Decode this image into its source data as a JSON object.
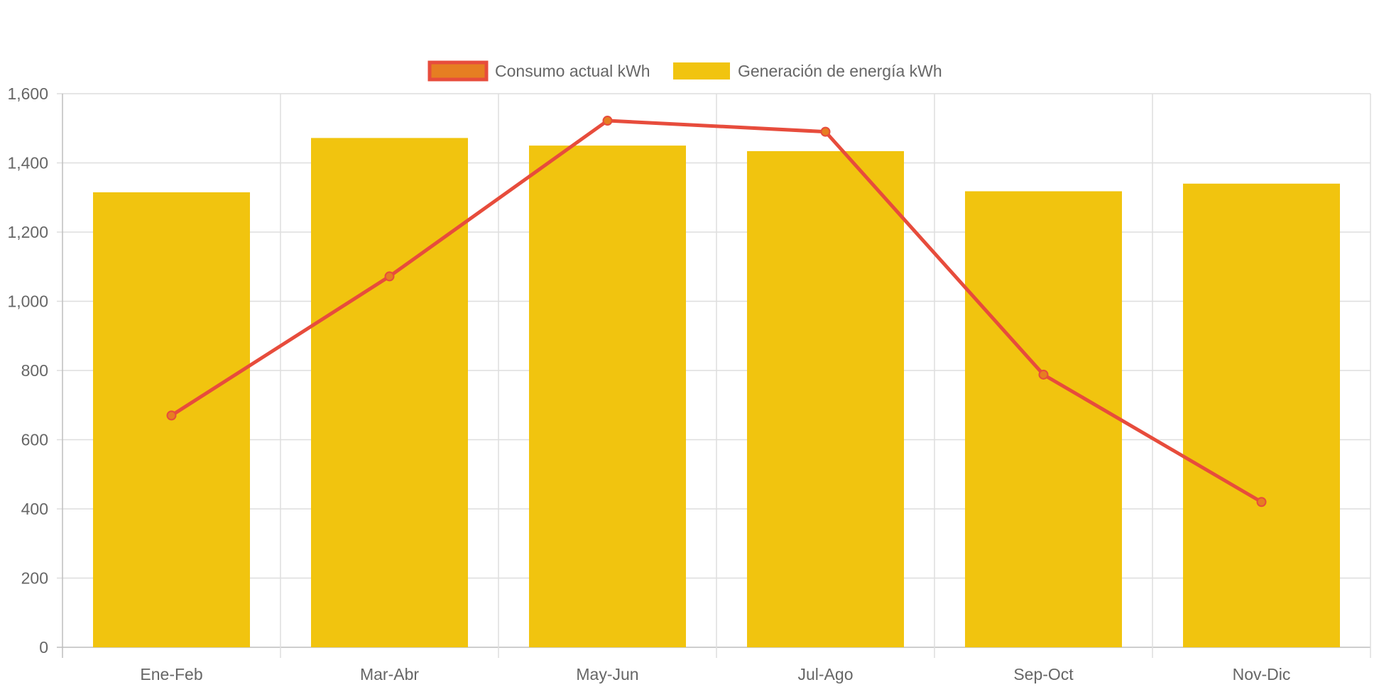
{
  "chart_data": {
    "type": "bar",
    "categories": [
      "Ene-Feb",
      "Mar-Abr",
      "May-Jun",
      "Jul-Ago",
      "Sep-Oct",
      "Nov-Dic"
    ],
    "series": [
      {
        "name": "Consumo actual kWh",
        "type": "line",
        "values": [
          670,
          1072,
          1522,
          1490,
          788,
          420
        ],
        "color": "#e74c3c",
        "point_fill": "#e67e22"
      },
      {
        "name": "Generación de energía kWh",
        "type": "bar",
        "values": [
          1315,
          1472,
          1450,
          1434,
          1318,
          1340
        ],
        "color": "#f1c40f"
      }
    ],
    "y_ticks": [
      "0",
      "200",
      "400",
      "600",
      "800",
      "1,000",
      "1,200",
      "1,400",
      "1,600"
    ],
    "ylim": [
      0,
      1600
    ],
    "grid": true,
    "legend_position": "top-center",
    "title": "",
    "xlabel": "",
    "ylabel": ""
  }
}
